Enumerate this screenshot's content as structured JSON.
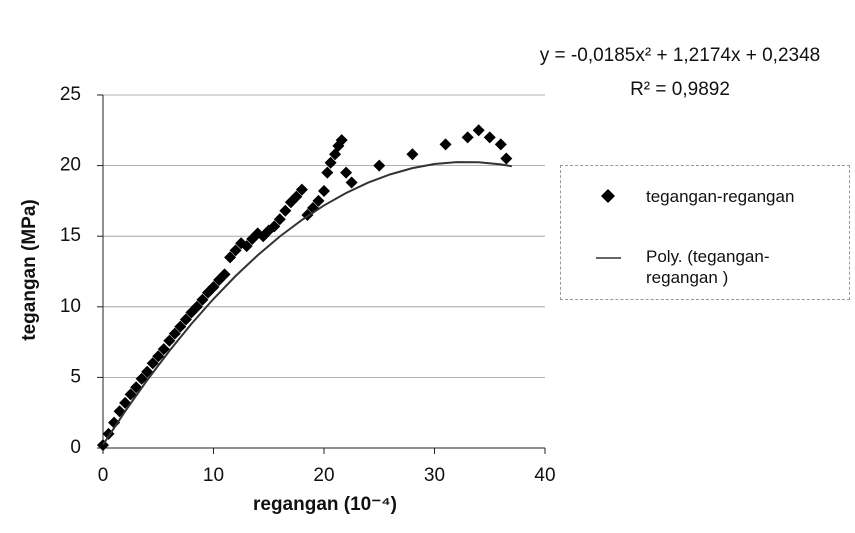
{
  "chart_data": {
    "type": "scatter",
    "equation": "y = -0,0185x² + 1,2174x + 0,2348",
    "r_squared": "R² = 0,9892",
    "x_label": "regangan (10⁻⁴)",
    "y_label": "tegangan (MPa)",
    "xlim": [
      0,
      40
    ],
    "xticks": [
      0,
      10,
      20,
      30,
      40
    ],
    "ylim": [
      0,
      25
    ],
    "yticks": [
      0,
      5,
      10,
      15,
      20,
      25
    ],
    "grid": true,
    "legend": "right",
    "series": [
      {
        "name": "tegangan-regangan",
        "color": "#000000",
        "marker": "diamond",
        "x": [
          0,
          0.5,
          1,
          1.5,
          2,
          2.5,
          3,
          3.5,
          4,
          4.5,
          5,
          5.5,
          6,
          6.5,
          7,
          7.5,
          8,
          8.5,
          9,
          9.5,
          10,
          10.5,
          11,
          11.5,
          12,
          12.5,
          13,
          13.5,
          14,
          14.5,
          15,
          15.5,
          16,
          16.5,
          17,
          17.5,
          18,
          18.5,
          19,
          19.5,
          20,
          20.3,
          20.6,
          21,
          21.3,
          21.6,
          22,
          22.5,
          25,
          28,
          31,
          33,
          34,
          35,
          36,
          36.5
        ],
        "values": [
          0.2,
          1.0,
          1.8,
          2.6,
          3.2,
          3.8,
          4.3,
          4.9,
          5.4,
          6.0,
          6.5,
          7.0,
          7.6,
          8.1,
          8.6,
          9.1,
          9.6,
          10.0,
          10.5,
          11.0,
          11.4,
          11.9,
          12.3,
          13.5,
          14.0,
          14.5,
          14.3,
          14.8,
          15.2,
          15.0,
          15.4,
          15.7,
          16.2,
          16.8,
          17.4,
          17.8,
          18.3,
          16.5,
          17.0,
          17.5,
          18.2,
          19.5,
          20.2,
          20.8,
          21.4,
          21.8,
          19.5,
          18.8,
          20.0,
          20.8,
          21.5,
          22.0,
          22.5,
          22.0,
          21.5,
          20.5
        ]
      },
      {
        "name": "Poly. (tegangan-regangan )",
        "color": "#333333",
        "marker": "line",
        "x": [
          0,
          2,
          4,
          6,
          8,
          10,
          12,
          14,
          16,
          18,
          20,
          22,
          24,
          26,
          28,
          30,
          32,
          34,
          36,
          37
        ],
        "values": [
          0.23,
          2.6,
          4.81,
          6.87,
          8.79,
          10.56,
          12.18,
          13.65,
          14.98,
          16.15,
          17.18,
          18.06,
          18.8,
          19.38,
          19.82,
          20.11,
          20.25,
          20.24,
          20.09,
          19.95
        ]
      }
    ]
  }
}
